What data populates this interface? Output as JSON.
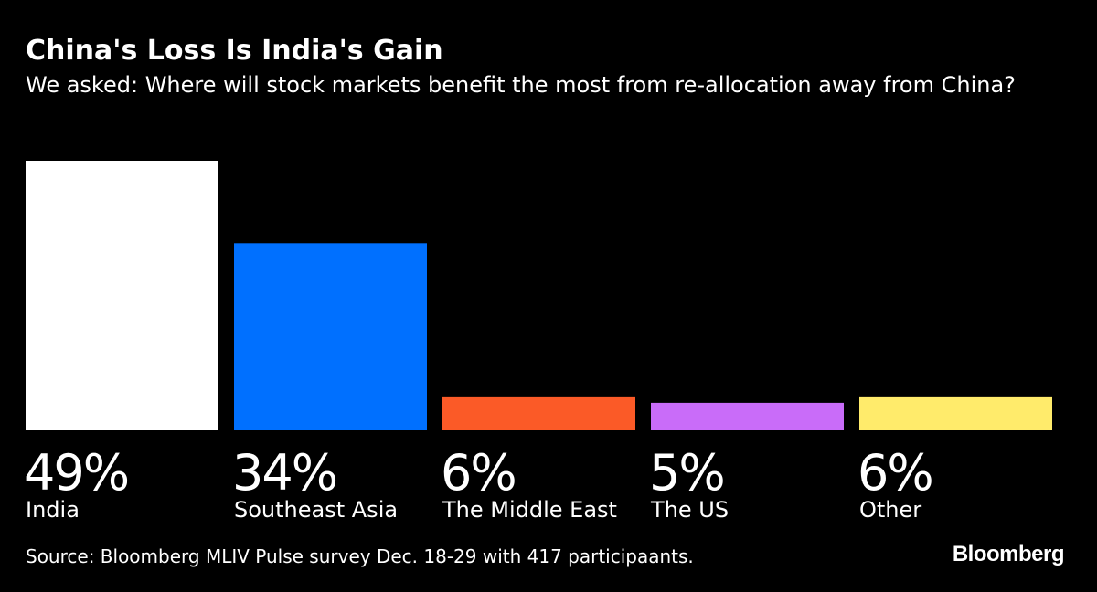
{
  "title": "China's Loss Is India's Gain",
  "subtitle": "We asked: Where will stock markets benefit the most from re-allocation away from China?",
  "source": "Source: Bloomberg MLIV Pulse survey Dec. 18-29 with 417 participaants.",
  "brand": "Bloomberg",
  "chart_data": {
    "type": "bar",
    "title": "China's Loss Is India's Gain",
    "xlabel": "",
    "ylabel": "",
    "ylim": [
      0,
      49
    ],
    "grid": false,
    "categories": [
      "India",
      "Southeast Asia",
      "The Middle East",
      "The US",
      "Other"
    ],
    "values": [
      49,
      34,
      6,
      5,
      6
    ],
    "value_labels": [
      "49%",
      "34%",
      "6%",
      "5%",
      "6%"
    ],
    "colors": [
      "#ffffff",
      "#0070ff",
      "#fb5a27",
      "#c96cf9",
      "#ffeb6b"
    ]
  }
}
